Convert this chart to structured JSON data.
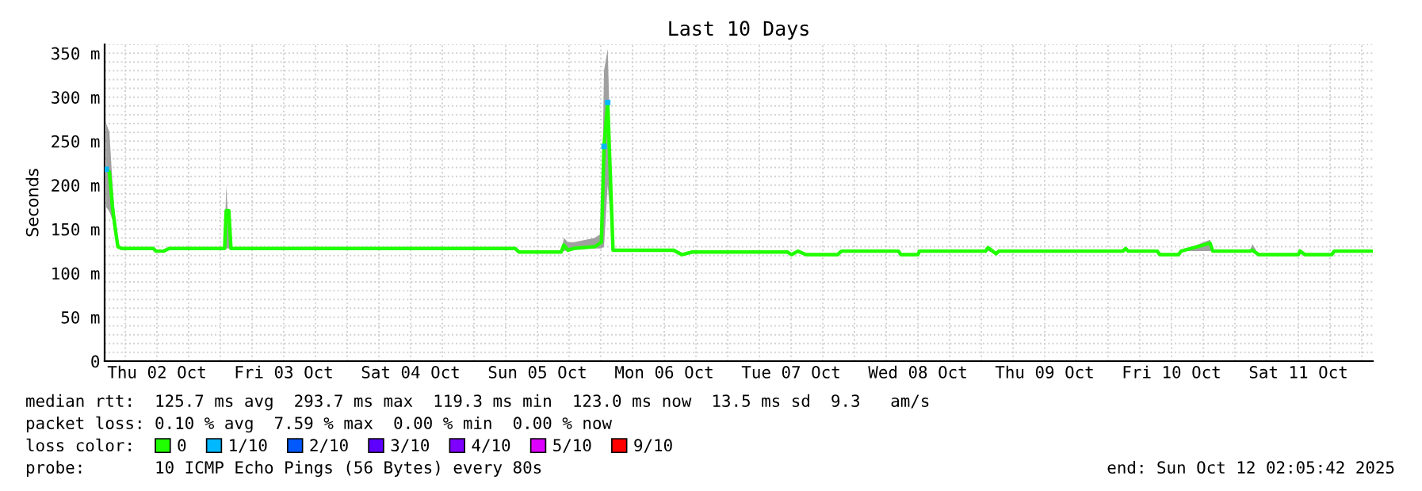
{
  "chart_data": {
    "type": "line",
    "title": "Last 10 Days",
    "ylabel": "Seconds",
    "x": [
      "2025-10-02T02:24",
      "2025-10-02T03:00",
      "2025-10-02T03:36",
      "2025-10-02T04:06",
      "2025-10-02T04:36",
      "2025-10-02T05:18",
      "2025-10-02T11:18",
      "2025-10-02T11:48",
      "2025-10-02T13:18",
      "2025-10-02T14:18",
      "2025-10-03T00:48",
      "2025-10-03T01:06",
      "2025-10-03T01:36",
      "2025-10-03T02:00",
      "2025-10-05T07:48",
      "2025-10-05T08:30",
      "2025-10-05T16:30",
      "2025-10-05T17:00",
      "2025-10-05T17:48",
      "2025-10-05T18:48",
      "2025-10-05T22:48",
      "2025-10-06T00:06",
      "2025-10-06T00:36",
      "2025-10-06T01:18",
      "2025-10-06T02:00",
      "2025-10-06T02:18",
      "2025-10-06T13:48",
      "2025-10-06T15:18",
      "2025-10-06T17:18",
      "2025-10-07T11:18",
      "2025-10-07T12:06",
      "2025-10-07T13:18",
      "2025-10-07T14:48",
      "2025-10-07T20:48",
      "2025-10-07T21:30",
      "2025-10-08T08:18",
      "2025-10-08T08:48",
      "2025-10-08T12:00",
      "2025-10-08T12:18",
      "2025-10-09T00:48",
      "2025-10-09T01:18",
      "2025-10-09T02:48",
      "2025-10-09T03:18",
      "2025-10-10T02:48",
      "2025-10-10T03:18",
      "2025-10-10T03:48",
      "2025-10-10T09:18",
      "2025-10-10T09:48",
      "2025-10-10T13:18",
      "2025-10-10T13:48",
      "2025-10-10T19:18",
      "2025-10-10T19:48",
      "2025-10-11T02:48",
      "2025-10-11T03:18",
      "2025-10-11T04:30",
      "2025-10-11T12:00",
      "2025-10-11T12:18",
      "2025-10-11T13:18",
      "2025-10-11T18:18",
      "2025-10-11T18:48",
      "2025-10-12T01:48"
    ],
    "series": [
      {
        "name": "0",
        "color": "#20ff00",
        "values": [
          218,
          215,
          174,
          151,
          130,
          128,
          128,
          125,
          125,
          128,
          128,
          171,
          171,
          128,
          128,
          124,
          124,
          132,
          126,
          128,
          130,
          135,
          244,
          294,
          177,
          126,
          126,
          121,
          124,
          124,
          121,
          125,
          121,
          121,
          125,
          125,
          121,
          121,
          125,
          125,
          129,
          122,
          125,
          125,
          128,
          125,
          125,
          121,
          121,
          125,
          134,
          125,
          125,
          126,
          121,
          121,
          125,
          121,
          121,
          125,
          125
        ],
        "lower": [
          175,
          170,
          160,
          140,
          130,
          128,
          128,
          125,
          125,
          128,
          128,
          128,
          128,
          128,
          128,
          124,
          124,
          125,
          126,
          128,
          128,
          128,
          130,
          200,
          150,
          126,
          126,
          121,
          124,
          124,
          121,
          125,
          121,
          121,
          125,
          125,
          121,
          121,
          125,
          125,
          125,
          122,
          125,
          125,
          125,
          125,
          125,
          121,
          121,
          125,
          125,
          125,
          125,
          126,
          121,
          121,
          125,
          121,
          121,
          125,
          125
        ],
        "upper": [
          270,
          260,
          200,
          160,
          135,
          128,
          128,
          125,
          125,
          128,
          128,
          200,
          145,
          128,
          128,
          124,
          124,
          140,
          135,
          135,
          140,
          145,
          330,
          355,
          200,
          126,
          126,
          121,
          124,
          124,
          121,
          125,
          121,
          121,
          125,
          125,
          121,
          121,
          125,
          125,
          130,
          122,
          125,
          125,
          130,
          125,
          125,
          121,
          121,
          125,
          138,
          125,
          125,
          133,
          121,
          121,
          125,
          121,
          121,
          125,
          125
        ]
      },
      {
        "name": "1/10",
        "color": "#00b8ff",
        "type": "scatter",
        "x": [
          "2025-10-02T02:24",
          "2025-10-06T00:36",
          "2025-10-06T01:18"
        ],
        "values": [
          218,
          244,
          294
        ]
      },
      {
        "name": "2/10",
        "color": "#0059ff",
        "type": "scatter",
        "values": [
          null,
          null,
          null,
          null,
          null,
          null,
          null,
          null,
          null,
          null,
          null,
          null,
          null,
          null,
          null,
          null,
          null,
          null,
          null,
          null,
          null,
          null,
          null,
          null,
          null,
          null,
          null,
          null,
          null,
          null,
          null,
          null,
          null,
          null,
          null,
          null,
          null,
          null,
          null,
          null,
          null,
          null,
          null,
          null,
          null,
          null,
          null,
          null,
          null,
          null,
          null,
          null,
          null,
          null,
          null,
          null,
          null,
          null,
          null,
          null,
          null
        ]
      },
      {
        "name": "3/10",
        "color": "#5e00ff",
        "type": "scatter",
        "values": [
          null,
          null,
          null,
          null,
          null,
          null,
          null,
          null,
          null,
          null,
          null,
          null,
          null,
          null,
          null,
          null,
          null,
          null,
          null,
          null,
          null,
          null,
          null,
          null,
          null,
          null,
          null,
          null,
          null,
          null,
          null,
          null,
          null,
          null,
          null,
          null,
          null,
          null,
          null,
          null,
          null,
          null,
          null,
          null,
          null,
          null,
          null,
          null,
          null,
          null,
          null,
          null,
          null,
          null,
          null,
          null,
          null,
          null,
          null,
          null,
          null
        ]
      },
      {
        "name": "4/10",
        "color": "#7e00ff",
        "type": "scatter",
        "values": [
          null,
          null,
          null,
          null,
          null,
          null,
          null,
          null,
          null,
          null,
          null,
          null,
          null,
          null,
          null,
          null,
          null,
          null,
          null,
          null,
          null,
          null,
          null,
          null,
          null,
          null,
          null,
          null,
          null,
          null,
          null,
          null,
          null,
          null,
          null,
          null,
          null,
          null,
          null,
          null,
          null,
          null,
          null,
          null,
          null,
          null,
          null,
          null,
          null,
          null,
          null,
          null,
          null,
          null,
          null,
          null,
          null,
          null,
          null,
          null,
          null
        ]
      },
      {
        "name": "5/10",
        "color": "#dd00ff",
        "type": "scatter",
        "values": [
          null,
          null,
          null,
          null,
          null,
          null,
          null,
          null,
          null,
          null,
          null,
          null,
          null,
          null,
          null,
          null,
          null,
          null,
          null,
          null,
          null,
          null,
          null,
          null,
          null,
          null,
          null,
          null,
          null,
          null,
          null,
          null,
          null,
          null,
          null,
          null,
          null,
          null,
          null,
          null,
          null,
          null,
          null,
          null,
          null,
          null,
          null,
          null,
          null,
          null,
          null,
          null,
          null,
          null,
          null,
          null,
          null,
          null,
          null,
          null,
          null
        ]
      },
      {
        "name": "9/10",
        "color": "#ff0000",
        "type": "scatter",
        "values": [
          null,
          null,
          null,
          null,
          null,
          null,
          null,
          null,
          null,
          null,
          null,
          null,
          null,
          null,
          null,
          null,
          null,
          null,
          null,
          null,
          null,
          null,
          null,
          null,
          null,
          null,
          null,
          null,
          null,
          null,
          null,
          null,
          null,
          null,
          null,
          null,
          null,
          null,
          null,
          null,
          null,
          null,
          null,
          null,
          null,
          null,
          null,
          null,
          null,
          null,
          null,
          null,
          null,
          null,
          null,
          null,
          null,
          null,
          null,
          null,
          null
        ]
      }
    ],
    "legend_title": "loss color:",
    "legend": "bottom",
    "grid": true,
    "xlim": [
      "2025-10-02T02:05:42",
      "2025-10-12T02:05:42"
    ],
    "xticks": [
      {
        "value": "2025-10-02T12:00",
        "label": "Thu 02 Oct"
      },
      {
        "value": "2025-10-03T12:00",
        "label": "Fri 03 Oct"
      },
      {
        "value": "2025-10-04T12:00",
        "label": "Sat 04 Oct"
      },
      {
        "value": "2025-10-05T12:00",
        "label": "Sun 05 Oct"
      },
      {
        "value": "2025-10-06T12:00",
        "label": "Mon 06 Oct"
      },
      {
        "value": "2025-10-07T12:00",
        "label": "Tue 07 Oct"
      },
      {
        "value": "2025-10-08T12:00",
        "label": "Wed 08 Oct"
      },
      {
        "value": "2025-10-09T12:00",
        "label": "Thu 09 Oct"
      },
      {
        "value": "2025-10-10T12:00",
        "label": "Fri 10 Oct"
      },
      {
        "value": "2025-10-11T12:00",
        "label": "Sat 11 Oct"
      }
    ],
    "ylim": [
      0,
      360
    ],
    "yticks": [
      0,
      {
        "value": 50,
        "label": "50 m"
      },
      {
        "value": 100,
        "label": "100 m"
      },
      {
        "value": 150,
        "label": "150 m"
      },
      {
        "value": 200,
        "label": "200 m"
      },
      {
        "value": 250,
        "label": "250 m"
      },
      {
        "value": 300,
        "label": "300 m"
      },
      {
        "value": 350,
        "label": "350 m"
      }
    ],
    "annotations": [
      "median rtt:  125.7 ms avg  293.7 ms max  119.3 ms min  123.0 ms now  13.5 ms sd  9.3   am/s",
      "packet loss: 0.10 % avg  7.59 % max  0.00 % min  0.00 % now",
      "probe:       10 ICMP Echo Pings (56 Bytes) every 80s",
      "end: Sun Oct 12 02:05:42 2025"
    ]
  }
}
